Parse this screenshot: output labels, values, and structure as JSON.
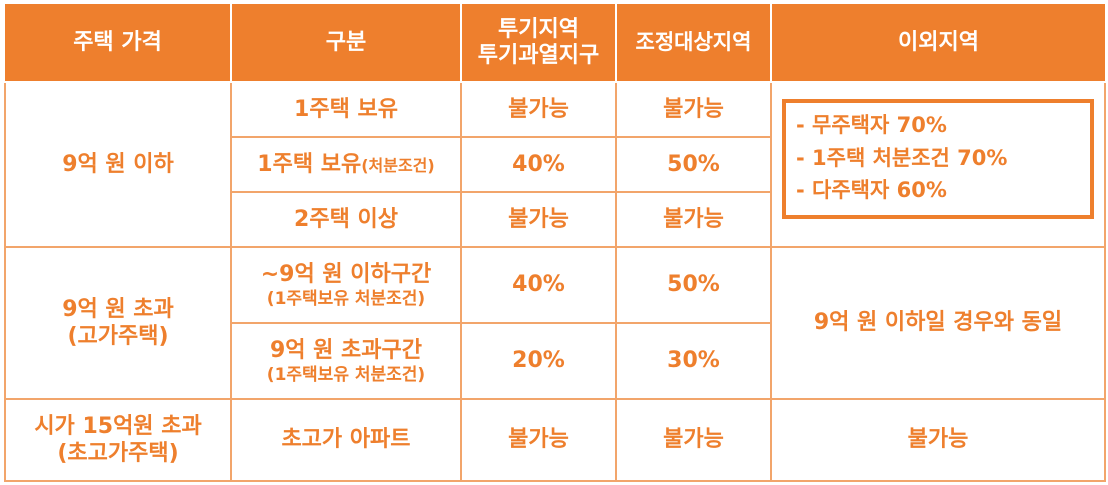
{
  "headers": {
    "price": "주택 가격",
    "category": "구분",
    "speculation_line1": "투기지역",
    "speculation_line2": "투기과열지구",
    "adjustment": "조정대상지역",
    "other": "이외지역"
  },
  "group1": {
    "label": "9억 원 이하",
    "row1": {
      "category": "1주택 보유",
      "speculation": "불가능",
      "adjustment": "불가능"
    },
    "row2": {
      "category": "1주택 보유",
      "category_note": "(처분조건)",
      "speculation": "40%",
      "adjustment": "50%"
    },
    "row3": {
      "category": "2주택 이상",
      "speculation": "불가능",
      "adjustment": "불가능"
    },
    "other_lines": [
      "- 무주택자 70%",
      "- 1주택 처분조건 70%",
      "- 다주택자 60%"
    ]
  },
  "group2": {
    "label_line1": "9억 원 초과",
    "label_line2": "(고가주택)",
    "row1": {
      "category": "~9억 원 이하구간",
      "category_note": "(1주택보유 처분조건)",
      "speculation": "40%",
      "adjustment": "50%"
    },
    "row2": {
      "category": "9억 원 초과구간",
      "category_note": "(1주택보유 처분조건)",
      "speculation": "20%",
      "adjustment": "30%"
    },
    "other": "9억 원 이하일 경우와 동일"
  },
  "group3": {
    "label_line1": "시가 15억원 초과",
    "label_line2": "(초고가주택)",
    "category": "초고가 아파트",
    "speculation": "불가능",
    "adjustment": "불가능",
    "other": "불가능"
  },
  "colors": {
    "accent": "#ee7f2d",
    "border": "#f2a56b",
    "header_text": "#ffffff"
  }
}
